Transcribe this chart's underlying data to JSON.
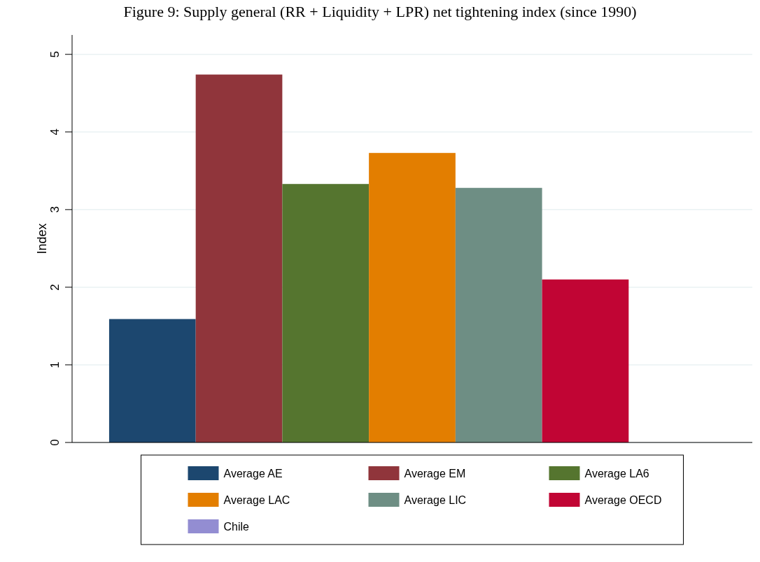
{
  "chart_data": {
    "type": "bar",
    "title": "Figure 9: Supply general (RR + Liquidity + LPR) net tightening index (since 1990)",
    "ylabel": "Index",
    "categories": [
      null
    ],
    "series": [
      {
        "name": "Average AE",
        "color": "#1c476f",
        "values": [
          1.59
        ]
      },
      {
        "name": "Average EM",
        "color": "#90353b",
        "values": [
          4.74
        ]
      },
      {
        "name": "Average LA6",
        "color": "#55752f",
        "values": [
          3.33
        ]
      },
      {
        "name": "Average LAC",
        "color": "#e37e00",
        "values": [
          3.73
        ]
      },
      {
        "name": "Average LIC",
        "color": "#6e8e84",
        "values": [
          3.28
        ]
      },
      {
        "name": "Average OECD",
        "color": "#c10534",
        "values": [
          2.1
        ]
      },
      {
        "name": "Chile",
        "color": "#938dd2",
        "values": [
          null
        ]
      }
    ],
    "ylim": [
      0,
      5.25
    ],
    "yticks": [
      0,
      1,
      2,
      3,
      4,
      5
    ],
    "grid": "y",
    "legend": "bottom"
  }
}
